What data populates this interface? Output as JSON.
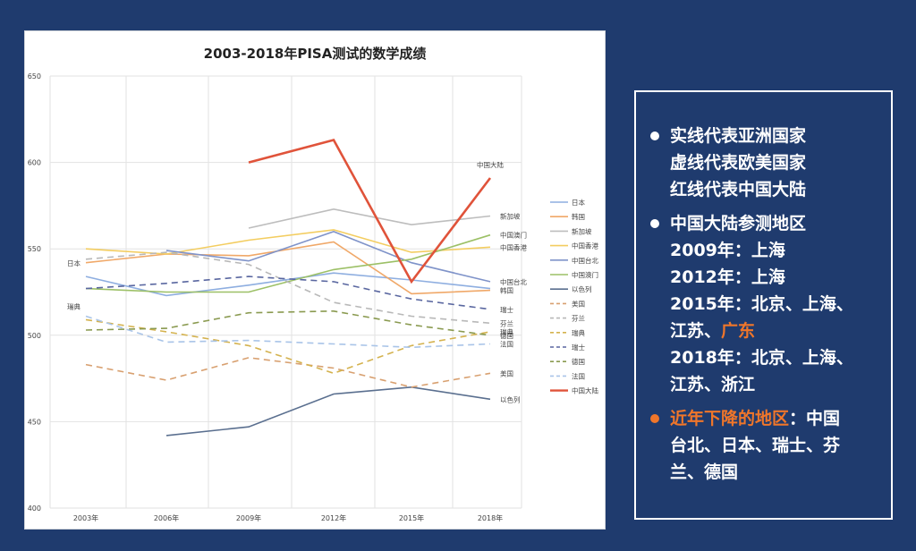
{
  "chart_data": {
    "type": "line",
    "title": "2003-2018年PISA测试的数学成绩",
    "categories": [
      "2003年",
      "2006年",
      "2009年",
      "2012年",
      "2015年",
      "2018年"
    ],
    "ylim": [
      400,
      650
    ],
    "yticks": [
      400,
      450,
      500,
      550,
      600,
      650
    ],
    "grid": true,
    "legend_position": "right",
    "series": [
      {
        "name": "日本",
        "color": "#8eaee0",
        "dash": false,
        "values": [
          534,
          523,
          529,
          536,
          532,
          527
        ],
        "end_label": "",
        "start_label": "日本"
      },
      {
        "name": "韩国",
        "color": "#f0a868",
        "dash": false,
        "values": [
          542,
          547,
          546,
          554,
          524,
          526
        ],
        "end_label": "韩国"
      },
      {
        "name": "新加坡",
        "color": "#bdbdbd",
        "dash": false,
        "values": [
          null,
          null,
          562,
          573,
          564,
          569
        ],
        "end_label": "新加坡"
      },
      {
        "name": "中国香港",
        "color": "#f3cd60",
        "dash": false,
        "values": [
          550,
          547,
          555,
          561,
          548,
          551
        ],
        "end_label": "中国香港"
      },
      {
        "name": "中国台北",
        "color": "#7f93c9",
        "dash": false,
        "values": [
          null,
          549,
          543,
          560,
          542,
          531
        ],
        "end_label": "中国台北"
      },
      {
        "name": "中国澳门",
        "color": "#9cc066",
        "dash": false,
        "values": [
          527,
          525,
          525,
          538,
          544,
          558
        ],
        "end_label": "中国澳门"
      },
      {
        "name": "以色列",
        "color": "#5a6f8f",
        "dash": false,
        "values": [
          null,
          442,
          447,
          466,
          470,
          463
        ],
        "end_label": "以色列"
      },
      {
        "name": "美国",
        "color": "#d8a070",
        "dash": true,
        "values": [
          483,
          474,
          487,
          481,
          470,
          478
        ],
        "end_label": "美国"
      },
      {
        "name": "芬兰",
        "color": "#b8b8b8",
        "dash": true,
        "values": [
          544,
          548,
          541,
          519,
          511,
          507
        ],
        "end_label": "芬兰"
      },
      {
        "name": "瑞典",
        "color": "#d4b24e",
        "dash": true,
        "values": [
          509,
          502,
          494,
          478,
          494,
          502
        ],
        "end_label": "瑞典",
        "start_label": "瑞典"
      },
      {
        "name": "瑞士",
        "color": "#5a67a0",
        "dash": true,
        "values": [
          527,
          530,
          534,
          531,
          521,
          515
        ],
        "end_label": "瑞士"
      },
      {
        "name": "德国",
        "color": "#8a9a50",
        "dash": true,
        "values": [
          503,
          504,
          513,
          514,
          506,
          500
        ],
        "end_label": "德国"
      },
      {
        "name": "法国",
        "color": "#a9c4e8",
        "dash": true,
        "values": [
          511,
          496,
          497,
          495,
          493,
          495
        ],
        "end_label": "法国"
      },
      {
        "name": "中国大陆",
        "color": "#e0533a",
        "dash": false,
        "values": [
          null,
          null,
          600,
          613,
          531,
          591
        ],
        "end_label": "",
        "top_label": "中国大陆"
      }
    ]
  },
  "info": {
    "items": [
      {
        "lines": [
          [
            {
              "text": "实线代表亚洲国家"
            }
          ],
          [
            {
              "text": "虚线代表欧美国家"
            }
          ],
          [
            {
              "text": "红线代表中国大陆"
            }
          ]
        ]
      },
      {
        "lines": [
          [
            {
              "text": "中国大陆参测地区"
            }
          ],
          [
            {
              "text": "2009年：上海"
            }
          ],
          [
            {
              "text": "2012年：上海"
            }
          ],
          [
            {
              "text": "2015年：北京、上海、"
            }
          ],
          [
            {
              "text": "江苏、"
            },
            {
              "text": "广东",
              "highlight": true
            }
          ],
          [
            {
              "text": "2018年：北京、上海、"
            }
          ],
          [
            {
              "text": "江苏、浙江"
            }
          ]
        ]
      },
      {
        "bullet_color": "#f0762a",
        "lines": [
          [
            {
              "text": "近年下降的地区",
              "highlight": true
            },
            {
              "text": "：中国"
            }
          ],
          [
            {
              "text": "台北、日本、瑞士、芬"
            }
          ],
          [
            {
              "text": "兰、德国"
            }
          ]
        ]
      }
    ]
  }
}
